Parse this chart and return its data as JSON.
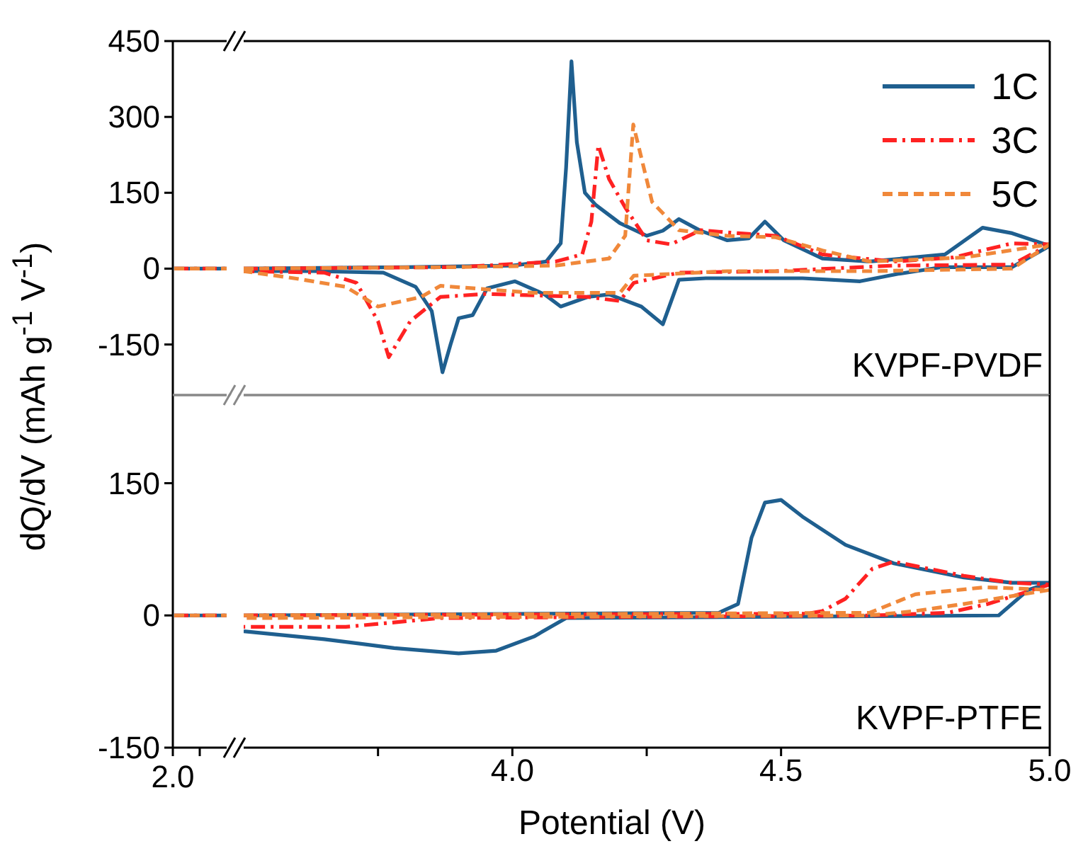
{
  "chart_data": [
    {
      "type": "line",
      "ylabel": "dQ/dV (mAh g$^{-1}$ V$^{-1}$)",
      "xlim": [
        3.5,
        5.0
      ],
      "ylim": [
        -250,
        450
      ],
      "yticks": [
        450,
        300,
        150,
        0,
        -150
      ],
      "tick_labels": "y",
      "legend": "top right",
      "annotations": [
        "KVPF-PVDF"
      ],
      "series": [
        {
          "name": "1C",
          "color": "#1f5f8f",
          "line_style": "solid",
          "x": [
            3.5,
            3.8,
            4.0,
            4.063,
            4.09,
            4.1,
            4.11,
            4.12,
            4.135,
            4.155,
            4.2,
            4.25,
            4.28,
            4.31,
            4.35,
            4.4,
            4.44,
            4.47,
            4.505,
            4.577,
            4.665,
            4.805,
            4.875,
            4.93,
            5.0,
            4.93,
            4.8,
            4.72,
            4.647,
            4.54,
            4.36,
            4.31,
            4.28,
            4.24,
            4.18,
            4.14,
            4.09,
            4.06,
            4.005,
            3.953,
            3.926,
            3.9,
            3.885,
            3.87,
            3.85,
            3.82,
            3.76,
            3.63,
            3.5
          ],
          "values": [
            0,
            3,
            6,
            14,
            50,
            200,
            410,
            250,
            150,
            126,
            90,
            65,
            75,
            98,
            75,
            56,
            60,
            93,
            56,
            20,
            14,
            28,
            81,
            70,
            45,
            3,
            3,
            -10,
            -25,
            -19,
            -19,
            -22,
            -110,
            -75,
            -51,
            -56,
            -75,
            -51,
            -25,
            -39,
            -92,
            -98,
            -150,
            -205,
            -84,
            -36,
            -8,
            -5,
            -5
          ]
        },
        {
          "name": "3C",
          "color": "#ff2222",
          "line_style": "dashdot",
          "x": [
            3.5,
            3.9,
            4.08,
            4.13,
            4.147,
            4.16,
            4.18,
            4.21,
            4.25,
            4.295,
            4.35,
            4.42,
            4.49,
            4.577,
            4.71,
            4.82,
            4.93,
            5.0,
            4.93,
            4.71,
            4.49,
            4.31,
            4.226,
            4.2,
            4.14,
            3.95,
            3.866,
            3.81,
            3.77,
            3.75,
            3.71,
            3.65,
            3.5
          ],
          "values": [
            0,
            3,
            14,
            28,
            93,
            244,
            177,
            121,
            56,
            48,
            76,
            70,
            65,
            28,
            14,
            22,
            50,
            48,
            8,
            6,
            -5,
            -8,
            -28,
            -64,
            -56,
            -50,
            -56,
            -104,
            -175,
            -104,
            -28,
            -8,
            -5
          ]
        },
        {
          "name": "5C",
          "color": "#f0883a",
          "line_style": "dashed",
          "x": [
            3.5,
            3.9,
            4.08,
            4.18,
            4.21,
            4.225,
            4.26,
            4.31,
            4.4,
            4.49,
            4.577,
            4.665,
            4.84,
            5.0,
            4.93,
            4.665,
            4.4,
            4.226,
            4.2,
            4.04,
            3.866,
            3.83,
            3.75,
            3.69,
            3.6,
            3.5
          ],
          "values": [
            0,
            3,
            6,
            20,
            65,
            285,
            132,
            76,
            65,
            62,
            36,
            14,
            22,
            48,
            0,
            -5,
            -5,
            -14,
            -48,
            -48,
            -34,
            -56,
            -75,
            -36,
            -20,
            -5
          ]
        }
      ]
    },
    {
      "type": "line",
      "xlabel": "Potential (V)",
      "xlim": [
        3.5,
        5.0
      ],
      "xticks": [
        {
          "value": 3.75,
          "label": null
        },
        {
          "value": 4.0,
          "label": "4.0"
        },
        {
          "value": 4.25,
          "label": null
        },
        {
          "value": 4.5,
          "label": "4.5"
        },
        {
          "value": 5.0,
          "label": "5.0"
        }
      ],
      "ylim": [
        -150,
        250
      ],
      "yticks": [
        150,
        0,
        -150
      ],
      "annotations": [
        "KVPF-PTFE",
        "2.0"
      ],
      "series": [
        {
          "color": "#1f5f8f",
          "line_style": "solid",
          "x": [
            3.5,
            4.384,
            4.42,
            4.445,
            4.47,
            4.5,
            4.54,
            4.62,
            4.71,
            4.84,
            4.93,
            5.0,
            4.96,
            4.905,
            4.1,
            4.04,
            3.97,
            3.9,
            3.78,
            3.65,
            3.5
          ],
          "values": [
            0,
            3,
            13,
            88,
            128,
            131,
            112,
            80,
            59,
            43,
            37,
            37,
            29,
            0,
            -3,
            -24,
            -40,
            -43,
            -37,
            -27,
            -18
          ]
        },
        {
          "color": "#ff2222",
          "line_style": "dashdot",
          "x": [
            3.5,
            4.55,
            4.577,
            4.62,
            4.67,
            4.71,
            4.84,
            4.93,
            5.0,
            4.885,
            4.81,
            4.67,
            3.866,
            3.69,
            3.5
          ],
          "values": [
            0,
            2,
            5,
            19,
            53,
            61,
            45,
            37,
            35,
            13,
            3,
            0,
            -3,
            -13,
            -13
          ]
        },
        {
          "color": "#f0883a",
          "line_style": "dashed",
          "x": [
            3.5,
            4.665,
            4.75,
            4.88,
            5.0,
            4.84,
            4.75,
            4.665,
            3.5
          ],
          "values": [
            0,
            3,
            24,
            32,
            29,
            13,
            5,
            0,
            -3
          ]
        }
      ]
    }
  ]
}
